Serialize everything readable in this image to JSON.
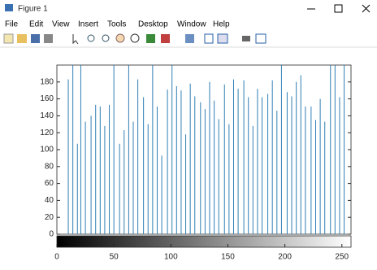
{
  "window": {
    "title": "Figure 1",
    "menu": [
      "File",
      "Edit",
      "View",
      "Insert",
      "Tools",
      "Desktop",
      "Window",
      "Help"
    ]
  },
  "chart_data": {
    "type": "stem",
    "color": "#2f7fb5",
    "x": [
      10,
      14,
      18,
      21,
      25,
      30,
      34,
      38,
      42,
      46,
      50,
      55,
      59,
      63,
      67,
      71,
      76,
      80,
      84,
      88,
      92,
      97,
      101,
      105,
      109,
      113,
      117,
      121,
      126,
      130,
      134,
      138,
      142,
      147,
      151,
      155,
      159,
      164,
      168,
      172,
      176,
      180,
      185,
      189,
      193,
      197,
      202,
      206,
      210,
      214,
      218,
      223,
      227,
      231,
      235,
      240,
      244,
      248,
      252
    ],
    "values": [
      183,
      200,
      107,
      200,
      133,
      140,
      153,
      151,
      128,
      153,
      200,
      107,
      123,
      200,
      133,
      183,
      162,
      130,
      200,
      151,
      93,
      171,
      200,
      175,
      170,
      118,
      178,
      163,
      156,
      148,
      180,
      158,
      136,
      177,
      130,
      183,
      172,
      182,
      162,
      128,
      172,
      162,
      166,
      182,
      146,
      200,
      168,
      163,
      180,
      188,
      151,
      151,
      135,
      160,
      133,
      200,
      200,
      162,
      200
    ],
    "xlim": [
      0,
      258
    ],
    "ylim": [
      0,
      200
    ],
    "xticks": [
      0,
      50,
      100,
      150,
      200,
      250
    ],
    "yticks": [
      0,
      20,
      40,
      60,
      80,
      100,
      120,
      140,
      160,
      180
    ]
  }
}
